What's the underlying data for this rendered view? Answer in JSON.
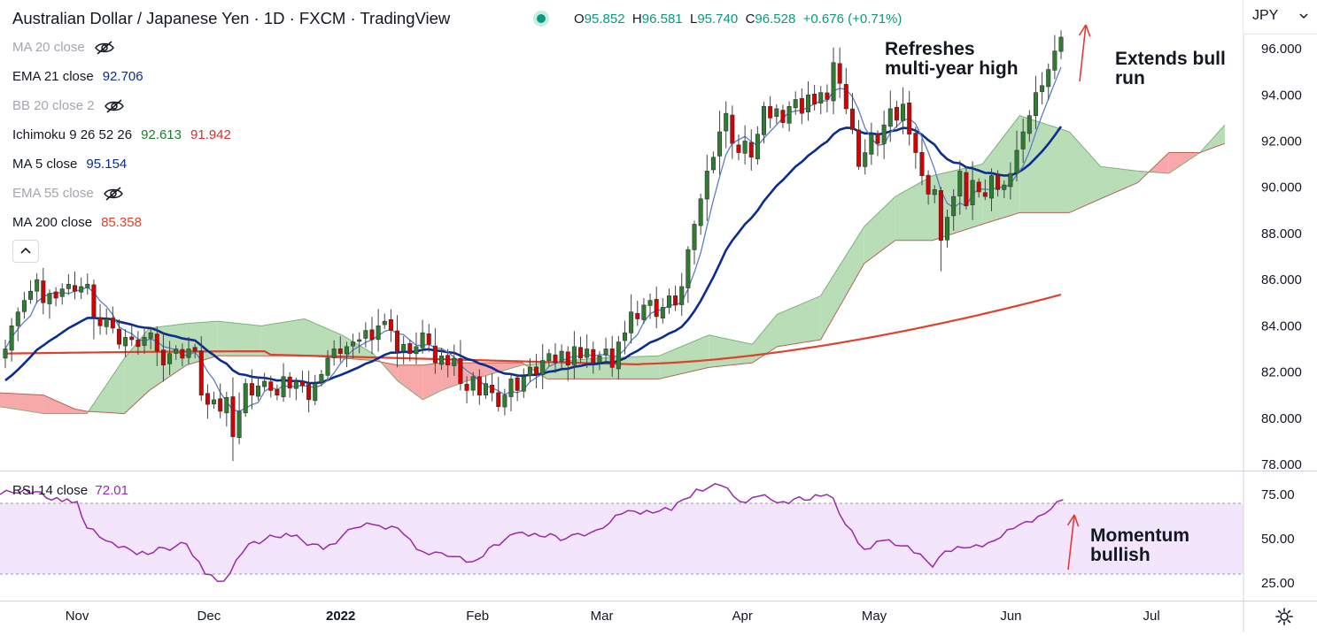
{
  "header": {
    "title": "Australian Dollar / Japanese Yen · 1D · FXCM · TradingView",
    "ohlc": {
      "o_label": "O",
      "o": "95.852",
      "h_label": "H",
      "h": "96.581",
      "l_label": "L",
      "l": "95.740",
      "c_label": "C",
      "c": "96.528",
      "change": "+0.676 (+0.71%)"
    },
    "currency": "JPY"
  },
  "indicators": [
    {
      "name": "MA 20 close",
      "values": [],
      "hidden": true
    },
    {
      "name": "EMA 21 close",
      "values": [
        "92.706"
      ],
      "colors": [
        "#0b2d8f"
      ]
    },
    {
      "name": "BB 20 close 2",
      "values": [],
      "hidden": true
    },
    {
      "name": "Ichimoku 9 26 52 26",
      "values": [
        "92.613",
        "91.942"
      ],
      "colors": [
        "#1a7f2e",
        "#d32f2f"
      ]
    },
    {
      "name": "MA 5 close",
      "values": [
        "95.154"
      ],
      "colors": [
        "#0b2d8f"
      ]
    },
    {
      "name": "EMA 55 close",
      "values": [],
      "hidden": true
    },
    {
      "name": "MA 200 close",
      "values": [
        "85.358"
      ],
      "colors": [
        "#e0412c"
      ]
    }
  ],
  "rsi_panel": {
    "name": "RSI 14 close",
    "value": "72.01"
  },
  "annotations": {
    "top_middle": "Refreshes\nmulti-year high",
    "top_right": "Extends bull\nrun",
    "rsi_right": "Momentum\nbullish"
  },
  "colors": {
    "bull": "#2e7d32",
    "bear": "#d50000",
    "ma5": "#5b7ec9",
    "ema21": "#0b2d8f",
    "ma200": "#e0412c",
    "cloud_bull": "#b9ddb6",
    "cloud_bear": "#f7a8a8",
    "rsi_line": "#9c27b0",
    "rsi_band": "#f3e5fb"
  },
  "chart_data": [
    {
      "type": "candlestick",
      "title": "Australian Dollar / Japanese Yen · 1D · FXCM · TradingView",
      "ylim": [
        78,
        96.5
      ],
      "y_ticks": [
        "78.000",
        "80.000",
        "82.000",
        "84.000",
        "86.000",
        "88.000",
        "90.000",
        "92.000",
        "94.000",
        "96.000"
      ],
      "x_ticks": [
        {
          "label": "Nov",
          "t": 0.062
        },
        {
          "label": "Dec",
          "t": 0.168
        },
        {
          "label": "2022",
          "t": 0.274
        },
        {
          "label": "Feb",
          "t": 0.384
        },
        {
          "label": "Mar",
          "t": 0.484
        },
        {
          "label": "Apr",
          "t": 0.597
        },
        {
          "label": "May",
          "t": 0.703
        },
        {
          "label": "Jun",
          "t": 0.813
        },
        {
          "label": "Jul",
          "t": 0.926
        }
      ],
      "close": [
        83.0,
        84.0,
        84.6,
        85.1,
        85.5,
        86.0,
        85.0,
        85.4,
        85.2,
        85.6,
        85.8,
        85.5,
        85.7,
        85.8,
        84.4,
        84.0,
        84.3,
        83.9,
        83.2,
        83.5,
        83.4,
        83.1,
        83.5,
        83.7,
        82.9,
        82.3,
        82.8,
        83.0,
        82.6,
        83.0,
        82.9,
        81.0,
        80.6,
        80.8,
        80.3,
        80.9,
        79.2,
        80.3,
        81.5,
        81.0,
        81.4,
        81.6,
        81.2,
        81.0,
        81.8,
        81.3,
        81.6,
        81.4,
        80.8,
        81.5,
        81.9,
        82.6,
        83.0,
        82.8,
        83.1,
        83.3,
        83.4,
        83.8,
        83.4,
        84.0,
        84.2,
        83.8,
        82.9,
        83.2,
        82.8,
        83.1,
        83.7,
        83.2,
        82.4,
        82.7,
        82.3,
        82.6,
        81.5,
        81.2,
        81.8,
        81.0,
        81.5,
        81.1,
        80.5,
        81.0,
        81.7,
        81.2,
        81.8,
        82.2,
        81.9,
        82.5,
        82.8,
        82.4,
        82.9,
        82.3,
        83.1,
        82.6,
        83.0,
        82.4,
        82.7,
        83.0,
        82.2,
        83.3,
        83.7,
        84.6,
        84.3,
        84.9,
        85.1,
        84.4,
        84.8,
        85.3,
        84.9,
        85.7,
        87.3,
        88.4,
        89.5,
        90.7,
        91.3,
        92.4,
        93.2,
        91.9,
        91.5,
        92.0,
        91.3,
        92.3,
        93.5,
        93.0,
        93.4,
        92.8,
        93.5,
        93.8,
        93.2,
        94.0,
        93.6,
        94.1,
        93.8,
        95.4,
        94.5,
        93.4,
        92.5,
        90.9,
        91.5,
        92.3,
        91.9,
        92.7,
        93.4,
        92.9,
        93.6,
        92.3,
        91.5,
        90.5,
        89.7,
        89.9,
        87.7,
        88.7,
        89.6,
        90.7,
        89.2,
        90.3,
        89.8,
        89.6,
        90.5,
        89.9,
        90.1,
        90.6,
        91.6,
        92.4,
        93.1,
        94.1,
        94.4,
        95.1,
        95.9,
        96.5
      ],
      "series": [
        {
          "name": "MA 5 close",
          "value": "95.154"
        },
        {
          "name": "EMA 21 close",
          "value": "92.706"
        },
        {
          "name": "MA 200 close",
          "value": "85.358"
        },
        {
          "name": "Ichimoku 9 26 52 26",
          "values": [
            "92.613",
            "91.942"
          ]
        }
      ],
      "ichimoku_cloud": [
        {
          "t": 0.0,
          "a": 80.5,
          "b": 81.1
        },
        {
          "t": 0.035,
          "a": 80.2,
          "b": 81.0
        },
        {
          "t": 0.06,
          "a": 80.2,
          "b": 80.4
        },
        {
          "t": 0.07,
          "a": 80.2,
          "b": 80.3
        },
        {
          "t": 0.1,
          "a": 82.6,
          "b": 80.2
        },
        {
          "t": 0.12,
          "a": 83.9,
          "b": 81.2
        },
        {
          "t": 0.15,
          "a": 84.1,
          "b": 82.3
        },
        {
          "t": 0.175,
          "a": 84.2,
          "b": 82.7
        },
        {
          "t": 0.21,
          "a": 84.0,
          "b": 82.7
        },
        {
          "t": 0.245,
          "a": 84.3,
          "b": 82.7
        },
        {
          "t": 0.275,
          "a": 83.6,
          "b": 82.6
        },
        {
          "t": 0.3,
          "a": 82.8,
          "b": 82.5
        },
        {
          "t": 0.32,
          "a": 81.6,
          "b": 82.3
        },
        {
          "t": 0.34,
          "a": 80.8,
          "b": 82.3
        },
        {
          "t": 0.355,
          "a": 81.2,
          "b": 82.4
        },
        {
          "t": 0.375,
          "a": 81.6,
          "b": 82.4
        },
        {
          "t": 0.42,
          "a": 82.3,
          "b": 82.4
        },
        {
          "t": 0.44,
          "a": 82.4,
          "b": 81.7
        },
        {
          "t": 0.48,
          "a": 82.6,
          "b": 81.7
        },
        {
          "t": 0.53,
          "a": 82.7,
          "b": 81.7
        },
        {
          "t": 0.57,
          "a": 83.6,
          "b": 82.2
        },
        {
          "t": 0.605,
          "a": 83.2,
          "b": 82.4
        },
        {
          "t": 0.625,
          "a": 84.5,
          "b": 83.1
        },
        {
          "t": 0.66,
          "a": 85.3,
          "b": 83.4
        },
        {
          "t": 0.695,
          "a": 88.3,
          "b": 86.7
        },
        {
          "t": 0.72,
          "a": 89.6,
          "b": 87.7
        },
        {
          "t": 0.75,
          "a": 90.5,
          "b": 87.7
        },
        {
          "t": 0.79,
          "a": 91.0,
          "b": 88.4
        },
        {
          "t": 0.82,
          "a": 93.1,
          "b": 88.9
        },
        {
          "t": 0.86,
          "a": 92.4,
          "b": 88.9
        },
        {
          "t": 0.885,
          "a": 90.9,
          "b": 89.5
        },
        {
          "t": 0.915,
          "a": 90.7,
          "b": 90.2
        },
        {
          "t": 0.94,
          "a": 90.6,
          "b": 91.5
        },
        {
          "t": 0.965,
          "a": 91.5,
          "b": 91.5
        },
        {
          "t": 0.985,
          "a": 92.7,
          "b": 91.9
        }
      ]
    },
    {
      "type": "line",
      "title": "RSI 14 close",
      "ylim": [
        22,
        79
      ],
      "y_ticks": [
        "25.00",
        "50.00",
        "75.00"
      ],
      "bands": [
        30,
        70
      ],
      "rsi": [
        [
          0.0,
          75
        ],
        [
          0.02,
          78
        ],
        [
          0.05,
          71
        ],
        [
          0.062,
          71
        ],
        [
          0.07,
          56
        ],
        [
          0.09,
          48
        ],
        [
          0.11,
          41
        ],
        [
          0.15,
          47
        ],
        [
          0.165,
          30
        ],
        [
          0.18,
          26
        ],
        [
          0.2,
          47
        ],
        [
          0.23,
          53
        ],
        [
          0.26,
          44
        ],
        [
          0.285,
          56
        ],
        [
          0.3,
          58
        ],
        [
          0.32,
          56
        ],
        [
          0.335,
          44
        ],
        [
          0.36,
          40
        ],
        [
          0.38,
          37
        ],
        [
          0.41,
          52
        ],
        [
          0.43,
          53
        ],
        [
          0.455,
          50
        ],
        [
          0.48,
          55
        ],
        [
          0.5,
          64
        ],
        [
          0.52,
          66
        ],
        [
          0.54,
          66
        ],
        [
          0.56,
          78
        ],
        [
          0.58,
          80
        ],
        [
          0.595,
          71
        ],
        [
          0.61,
          74
        ],
        [
          0.63,
          71
        ],
        [
          0.66,
          74
        ],
        [
          0.67,
          73
        ],
        [
          0.68,
          58
        ],
        [
          0.695,
          44
        ],
        [
          0.71,
          49
        ],
        [
          0.73,
          46
        ],
        [
          0.75,
          34
        ],
        [
          0.76,
          43
        ],
        [
          0.78,
          45
        ],
        [
          0.8,
          49
        ],
        [
          0.82,
          58
        ],
        [
          0.84,
          64
        ],
        [
          0.855,
          72
        ]
      ]
    }
  ]
}
